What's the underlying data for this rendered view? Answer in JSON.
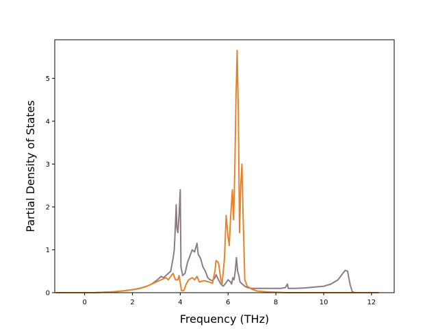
{
  "chart_data": {
    "type": "line",
    "title": "",
    "xlabel": "Frequency (THz)",
    "ylabel": "Partial Density of States",
    "xlim": [
      -1.25,
      12.95
    ],
    "ylim": [
      0,
      5.9
    ],
    "xticks": [
      0,
      2,
      4,
      6,
      8,
      10,
      12
    ],
    "yticks": [
      0,
      1,
      2,
      3,
      4,
      5
    ],
    "grid": false,
    "legend": "none",
    "series": [
      {
        "color": "#8c7b82",
        "points": [
          [
            -1.2,
            0
          ],
          [
            0.4,
            0.0
          ],
          [
            0.8,
            0.01
          ],
          [
            1.2,
            0.02
          ],
          [
            1.6,
            0.04
          ],
          [
            2.0,
            0.07
          ],
          [
            2.3,
            0.1
          ],
          [
            2.6,
            0.15
          ],
          [
            2.8,
            0.2
          ],
          [
            3.0,
            0.28
          ],
          [
            3.2,
            0.38
          ],
          [
            3.3,
            0.35
          ],
          [
            3.4,
            0.4
          ],
          [
            3.5,
            0.45
          ],
          [
            3.6,
            0.5
          ],
          [
            3.7,
            0.8
          ],
          [
            3.75,
            1.0
          ],
          [
            3.8,
            1.6
          ],
          [
            3.83,
            2.05
          ],
          [
            3.86,
            1.5
          ],
          [
            3.9,
            1.4
          ],
          [
            3.95,
            1.8
          ],
          [
            4.0,
            2.4
          ],
          [
            4.03,
            0.6
          ],
          [
            4.1,
            0.4
          ],
          [
            4.2,
            0.45
          ],
          [
            4.3,
            0.7
          ],
          [
            4.4,
            0.85
          ],
          [
            4.5,
            1.0
          ],
          [
            4.6,
            0.95
          ],
          [
            4.65,
            1.05
          ],
          [
            4.7,
            1.15
          ],
          [
            4.75,
            0.9
          ],
          [
            4.85,
            0.8
          ],
          [
            4.95,
            0.6
          ],
          [
            5.05,
            0.5
          ],
          [
            5.15,
            0.35
          ],
          [
            5.25,
            0.3
          ],
          [
            5.35,
            0.28
          ],
          [
            5.45,
            0.35
          ],
          [
            5.5,
            0.42
          ],
          [
            5.6,
            0.3
          ],
          [
            5.7,
            0.2
          ],
          [
            5.8,
            0.15
          ],
          [
            5.9,
            0.22
          ],
          [
            6.0,
            0.3
          ],
          [
            6.1,
            0.25
          ],
          [
            6.15,
            0.2
          ],
          [
            6.2,
            0.35
          ],
          [
            6.25,
            0.3
          ],
          [
            6.3,
            0.5
          ],
          [
            6.35,
            0.82
          ],
          [
            6.4,
            0.5
          ],
          [
            6.45,
            0.4
          ],
          [
            6.5,
            0.25
          ],
          [
            6.6,
            0.2
          ],
          [
            6.7,
            0.15
          ],
          [
            6.8,
            0.12
          ],
          [
            7.0,
            0.1
          ],
          [
            7.4,
            0.1
          ],
          [
            7.8,
            0.1
          ],
          [
            8.2,
            0.1
          ],
          [
            8.4,
            0.12
          ],
          [
            8.48,
            0.2
          ],
          [
            8.52,
            0.1
          ],
          [
            8.8,
            0.1
          ],
          [
            9.2,
            0.11
          ],
          [
            9.6,
            0.13
          ],
          [
            10.0,
            0.15
          ],
          [
            10.3,
            0.2
          ],
          [
            10.6,
            0.3
          ],
          [
            10.8,
            0.45
          ],
          [
            10.9,
            0.52
          ],
          [
            11.0,
            0.5
          ],
          [
            11.1,
            0.2
          ],
          [
            11.2,
            0.02
          ],
          [
            11.3,
            0.0
          ],
          [
            12.3,
            0
          ]
        ]
      },
      {
        "color": "#e8822a",
        "points": [
          [
            -1.2,
            0
          ],
          [
            0.4,
            0.0
          ],
          [
            0.8,
            0.01
          ],
          [
            1.2,
            0.02
          ],
          [
            1.6,
            0.04
          ],
          [
            2.0,
            0.07
          ],
          [
            2.3,
            0.1
          ],
          [
            2.6,
            0.15
          ],
          [
            2.8,
            0.2
          ],
          [
            3.0,
            0.25
          ],
          [
            3.2,
            0.3
          ],
          [
            3.4,
            0.35
          ],
          [
            3.5,
            0.3
          ],
          [
            3.6,
            0.38
          ],
          [
            3.7,
            0.45
          ],
          [
            3.8,
            0.3
          ],
          [
            3.9,
            0.3
          ],
          [
            3.95,
            0.4
          ],
          [
            4.05,
            0.05
          ],
          [
            4.15,
            0.05
          ],
          [
            4.25,
            0.2
          ],
          [
            4.35,
            0.3
          ],
          [
            4.5,
            0.35
          ],
          [
            4.6,
            0.3
          ],
          [
            4.7,
            0.38
          ],
          [
            4.8,
            0.25
          ],
          [
            5.0,
            0.28
          ],
          [
            5.2,
            0.25
          ],
          [
            5.35,
            0.22
          ],
          [
            5.45,
            0.5
          ],
          [
            5.5,
            0.75
          ],
          [
            5.6,
            0.7
          ],
          [
            5.7,
            0.3
          ],
          [
            5.75,
            0.2
          ],
          [
            5.85,
            0.8
          ],
          [
            5.92,
            1.8
          ],
          [
            6.0,
            1.3
          ],
          [
            6.05,
            1.1
          ],
          [
            6.1,
            1.7
          ],
          [
            6.18,
            2.4
          ],
          [
            6.23,
            1.7
          ],
          [
            6.28,
            2.8
          ],
          [
            6.33,
            4.5
          ],
          [
            6.38,
            5.65
          ],
          [
            6.43,
            4.2
          ],
          [
            6.48,
            1.4
          ],
          [
            6.53,
            2.5
          ],
          [
            6.58,
            3.0
          ],
          [
            6.62,
            2.0
          ],
          [
            6.7,
            0.3
          ],
          [
            6.8,
            0.15
          ],
          [
            7.0,
            0.08
          ],
          [
            7.2,
            0.04
          ],
          [
            7.6,
            0.02
          ],
          [
            8.0,
            0.01
          ],
          [
            8.5,
            0.0
          ],
          [
            9.5,
            0.0
          ],
          [
            12.3,
            0
          ]
        ]
      }
    ]
  }
}
